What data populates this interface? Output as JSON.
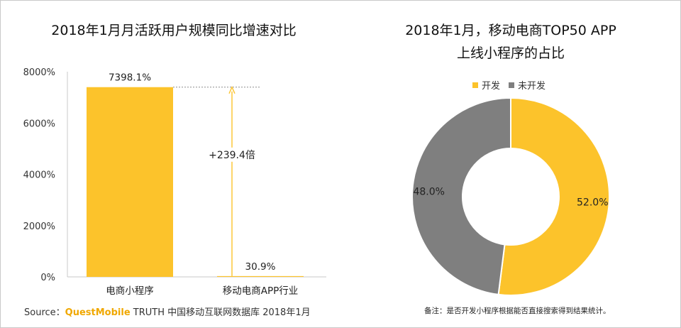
{
  "chart_data": [
    {
      "type": "bar",
      "title": "2018年1月月活跃用户规模同比增速对比",
      "categories": [
        "电商小程序",
        "移动电商APP行业"
      ],
      "values": [
        7398.1,
        30.9
      ],
      "value_labels": [
        "7398.1%",
        "30.9%"
      ],
      "ylim": [
        0,
        8000
      ],
      "yticks": [
        0,
        2000,
        4000,
        6000,
        8000
      ],
      "ytick_labels": [
        "0%",
        "2000%",
        "4000%",
        "6000%",
        "8000%"
      ],
      "annotation": "+239.4倍",
      "grid": false,
      "color": "#FCC32B"
    },
    {
      "type": "pie",
      "title_lines": [
        "2018年1月，移动电商TOP50 APP",
        "上线小程序的占比"
      ],
      "labels": [
        "开发",
        "未开发"
      ],
      "values": [
        52.0,
        48.0
      ],
      "value_labels": [
        "52.0%",
        "48.0%"
      ],
      "colors": [
        "#FCC32B",
        "#7F7F7F"
      ],
      "legend_position": "top"
    }
  ],
  "footer": {
    "source_prefix": "Source：",
    "source_brand": "QuestMobile",
    "source_suffix": " TRUTH 中国移动互联网数据库 2018年1月",
    "note": "备注：是否开发小程序根据能否直接搜索得到结果统计。"
  }
}
